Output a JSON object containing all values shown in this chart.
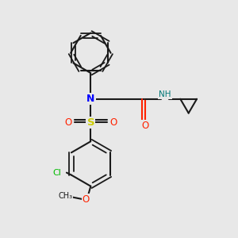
{
  "bg_color": "#e8e8e8",
  "bond_color": "#1a1a1a",
  "N_color": "#0000ff",
  "O_color": "#ff2200",
  "S_color": "#cccc00",
  "Cl_color": "#00bb00",
  "NH_color": "#007777",
  "figsize": [
    3.0,
    3.0
  ],
  "dpi": 100,
  "xlim": [
    0,
    10
  ],
  "ylim": [
    0,
    10
  ]
}
